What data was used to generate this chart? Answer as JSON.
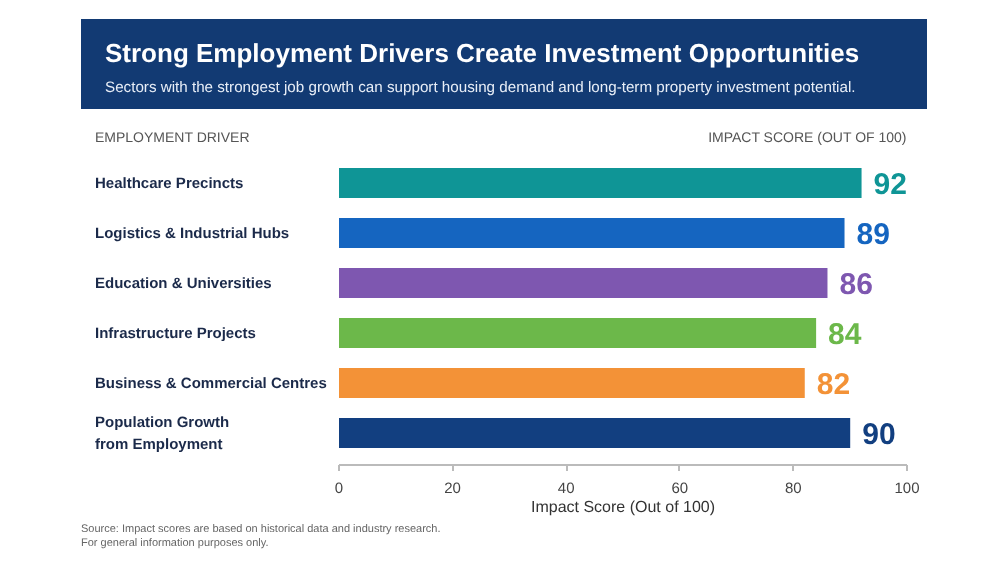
{
  "chart_data": {
    "type": "bar",
    "orientation": "horizontal",
    "title": "Strong Employment Drivers Create Investment Opportunities",
    "subtitle": "Sectors with the strongest job growth can support housing demand and long-term property investment potential.",
    "ylabel": "EMPLOYMENT DRIVER",
    "xlabel": "Impact Score (Out of 100)",
    "categories": [
      "Healthcare Precincts",
      "Logistics & Industrial Hubs",
      "Education & Universities",
      "Infrastructure Projects",
      "Business & Commercial Centres",
      "Population Growth\nfrom Employment"
    ],
    "values": [
      92,
      89,
      86,
      84,
      82,
      90
    ],
    "colors": [
      "#0f9596",
      "#1565c0",
      "#7e57b0",
      "#6cb84a",
      "#f39237",
      "#123f80"
    ],
    "xlim": [
      0,
      100
    ],
    "xticks": [
      0,
      20,
      40,
      60,
      80,
      100
    ],
    "data_labels": true,
    "grid": false,
    "annotations": [
      "IMPACT SCORE (OUT OF 100)",
      "Source: Impact scores are based on historical data and industry research.\nFor general information purposes only."
    ]
  }
}
